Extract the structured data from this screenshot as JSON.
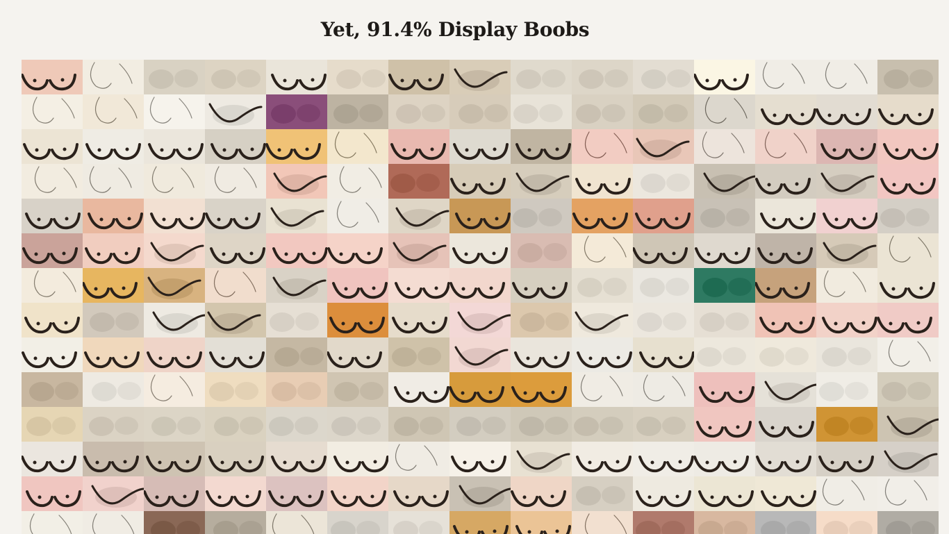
{
  "title": "Yet, 91.4% Display Boobs",
  "grid": {
    "columns": 15,
    "rows": 14,
    "rows_data": [
      [
        "#efc9b8",
        "#f2ede2",
        "#d9d2c3",
        "#ddd4c3",
        "#eae5da",
        "#e6dccb",
        "#cfc1a8",
        "#d9cdb8",
        "#e0dacd",
        "#ddd6c8",
        "#e3ddd2",
        "#fbf6e4",
        "#f0ede6",
        "#f0ede6",
        "#c8bfae"
      ],
      [
        "#f4efe4",
        "#f1e8d8",
        "#f6f3ec",
        "#eeeae2",
        "#8a4e7a",
        "#bdb3a2",
        "#ddd3c3",
        "#d7ccba",
        "#e8e3d8",
        "#d9d1c2",
        "#d3cab8",
        "#dcd7cd",
        "#e5ded0",
        "#e2dcd2",
        "#e6dccb"
      ],
      [
        "#ece4d4",
        "#efece4",
        "#ebe6dc",
        "#d6d0c4",
        "#f0c276",
        "#f3e7cd",
        "#e9b9b0",
        "#dedad0",
        "#c0b5a2",
        "#f2ccc2",
        "#e9c7b8",
        "#ede4dc",
        "#f0d2c9",
        "#dcb6b2",
        "#f2c7c0"
      ],
      [
        "#f2ece0",
        "#efebe2",
        "#f0eadd",
        "#f0ebe2",
        "#f2c7b8",
        "#f1ede4",
        "#b06a58",
        "#d7ccb8",
        "#d6cdbc",
        "#f0e4d0",
        "#ece7de",
        "#c8c0b2",
        "#d3ccc0",
        "#d5cdc0",
        "#f2c6c2"
      ],
      [
        "#d8d2c8",
        "#e9b89f",
        "#f2e0d2",
        "#d9d3c8",
        "#e9e2d2",
        "#f0ede6",
        "#dfd6c6",
        "#c89856",
        "#cfc9c0",
        "#e4a262",
        "#e0a08c",
        "#c8c1b6",
        "#ebe6da",
        "#f1d1d0",
        "#d4cfc6"
      ],
      [
        "#caa39a",
        "#f1cdbf",
        "#f4d9cd",
        "#ded5c6",
        "#f2c8c0",
        "#f5d3c8",
        "#e6c3b8",
        "#ece7dc",
        "#d9bcb2",
        "#f4ead8",
        "#cfc6b6",
        "#dfd9cf",
        "#bfb4a8",
        "#d6cab8",
        "#ebe4d4"
      ],
      [
        "#f3ebdd",
        "#e7b660",
        "#d8b380",
        "#f1ddcd",
        "#d9d2c6",
        "#f0c4bf",
        "#f4dcd2",
        "#f2d7cd",
        "#d6cfc0",
        "#e6e0d3",
        "#ebe8e1",
        "#2e7a62",
        "#c6a27c",
        "#f1ebdf",
        "#ebe4d4"
      ],
      [
        "#f0e3c9",
        "#d2c9bc",
        "#eeeae2",
        "#d3c6ad",
        "#e6dfd4",
        "#dc8e3c",
        "#e6dccb",
        "#f3d8d6",
        "#dcc8ad",
        "#efe9dd",
        "#ece7de",
        "#e6dfd4",
        "#f0c3b6",
        "#f2d2c8",
        "#f0cbc6"
      ],
      [
        "#f2efe6",
        "#f0d8bc",
        "#efd4c8",
        "#e3dfd6",
        "#c5b8a3",
        "#e2d9ca",
        "#cfc2a9",
        "#f2d8d2",
        "#eae5dc",
        "#eceae4",
        "#e7e0cf",
        "#ede8dd",
        "#efe9dc",
        "#eae6dd",
        "#f2efe8"
      ],
      [
        "#c8b7a0",
        "#eeeae2",
        "#f5ece0",
        "#efddc0",
        "#e8cdb4",
        "#d0c5b2",
        "#f0ece5",
        "#d79b3c",
        "#dc9c3c",
        "#f0ece4",
        "#eeebe4",
        "#eec0bc",
        "#e5e1d8",
        "#f0ede6",
        "#d4cdbc"
      ],
      [
        "#e6d6b4",
        "#dbd3c4",
        "#dcd5c6",
        "#dad2c0",
        "#dcd7cc",
        "#dcd6ca",
        "#cfc6b4",
        "#d3cdc0",
        "#cfc8b8",
        "#d4cdbd",
        "#d8d0c0",
        "#f0c6c0",
        "#d9d4cc",
        "#d09434",
        "#cdc4b2"
      ],
      [
        "#ebe6df",
        "#c9bcad",
        "#cec3b2",
        "#d9d0c0",
        "#e6dcd0",
        "#f2ede2",
        "#f0ece4",
        "#f6f1e8",
        "#e8e1d2",
        "#f1ece3",
        "#f0ede6",
        "#eeebe4",
        "#e2ddd4",
        "#d6d0c6",
        "#d6d0c8"
      ],
      [
        "#f0c6c0",
        "#f1d2cc",
        "#d6bcb6",
        "#f3d9d0",
        "#dcc2c0",
        "#f2d4c8",
        "#e6d8c8",
        "#c9c1b4",
        "#efd6c6",
        "#d6cfc2",
        "#eeeae0",
        "#ece6d4",
        "#efe8d6",
        "#f0ede6",
        "#f1eee8"
      ],
      [
        "#f2efe6",
        "#f0ece4",
        "#8a6856",
        "#b6ad9e",
        "#ece5d8",
        "#d8d4cc",
        "#e6e1d8",
        "#d6a864",
        "#ebc496",
        "#f2e0d0",
        "#b07a6c",
        "#d8b8a0",
        "#b8b8b8",
        "#f6dcc8",
        "#b0aca4"
      ]
    ],
    "row_shapes": [
      [
        1,
        3,
        0,
        0,
        1,
        0,
        1,
        2,
        0,
        0,
        0,
        1,
        3,
        3,
        0
      ],
      [
        3,
        3,
        3,
        2,
        0,
        0,
        0,
        0,
        0,
        0,
        0,
        3,
        1,
        1,
        1
      ],
      [
        1,
        1,
        1,
        1,
        1,
        3,
        1,
        1,
        1,
        3,
        2,
        3,
        3,
        1,
        1
      ],
      [
        3,
        3,
        3,
        3,
        2,
        3,
        0,
        1,
        2,
        1,
        0,
        2,
        1,
        2,
        1
      ],
      [
        1,
        1,
        1,
        1,
        2,
        3,
        2,
        1,
        0,
        1,
        1,
        0,
        1,
        1,
        0
      ],
      [
        1,
        1,
        2,
        1,
        1,
        1,
        2,
        1,
        0,
        3,
        1,
        1,
        1,
        2,
        3
      ],
      [
        3,
        1,
        2,
        3,
        2,
        1,
        1,
        1,
        1,
        0,
        0,
        0,
        1,
        3,
        1
      ],
      [
        1,
        0,
        2,
        2,
        0,
        1,
        1,
        2,
        0,
        2,
        0,
        0,
        1,
        1,
        1
      ],
      [
        1,
        1,
        1,
        1,
        0,
        1,
        0,
        2,
        1,
        1,
        1,
        0,
        0,
        0,
        3
      ],
      [
        0,
        0,
        3,
        0,
        0,
        0,
        1,
        1,
        1,
        3,
        3,
        1,
        2,
        0,
        0
      ],
      [
        0,
        0,
        0,
        0,
        0,
        0,
        0,
        0,
        0,
        0,
        0,
        1,
        1,
        0,
        2
      ],
      [
        1,
        1,
        1,
        1,
        1,
        1,
        3,
        1,
        2,
        1,
        1,
        1,
        1,
        1,
        2
      ],
      [
        1,
        2,
        1,
        1,
        1,
        1,
        1,
        2,
        1,
        0,
        1,
        1,
        1,
        3,
        3
      ],
      [
        3,
        3,
        0,
        0,
        3,
        0,
        0,
        1,
        1,
        3,
        0,
        0,
        0,
        0,
        0
      ]
    ]
  },
  "colors": {
    "background": "#f5f3ef",
    "ink": "#2a211b",
    "title_color": "#1d1a17"
  }
}
